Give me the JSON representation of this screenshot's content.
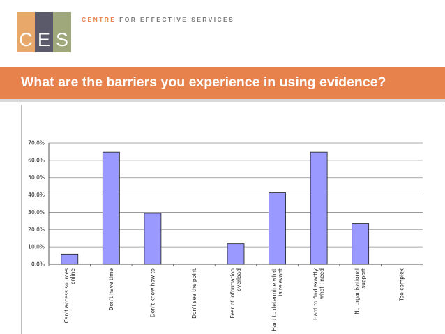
{
  "logo": {
    "letters": [
      "C",
      "E",
      "S"
    ],
    "colors": [
      "#e8a86a",
      "#5a5a6b",
      "#9ea87a"
    ]
  },
  "brand": {
    "prefix": "CENTRE ",
    "rest": "FOR EFFECTIVE SERVICES"
  },
  "banner": {
    "title": "What are the barriers you experience in using evidence?"
  },
  "colors": {
    "accent": "#e8824d",
    "bar": "#9999ff"
  },
  "chart_data": {
    "type": "bar",
    "categories": [
      [
        "Can't access sources",
        "online"
      ],
      [
        "Don't have time"
      ],
      [
        "Don't know how to"
      ],
      [
        "Don't see the point"
      ],
      [
        "Fear of information",
        "overload"
      ],
      [
        "Hard to determine what",
        "is relevant"
      ],
      [
        "Hard to find exactly",
        "what I need"
      ],
      [
        "No organisational",
        "support"
      ],
      [
        "Too complex"
      ]
    ],
    "values": [
      0.059,
      0.647,
      0.294,
      0.0,
      0.118,
      0.412,
      0.647,
      0.235,
      0.0
    ],
    "yticks": [
      "0.0%",
      "10.0%",
      "20.0%",
      "30.0%",
      "40.0%",
      "50.0%",
      "60.0%",
      "70.0%"
    ],
    "ylim": [
      0,
      0.7
    ],
    "grid": true
  }
}
